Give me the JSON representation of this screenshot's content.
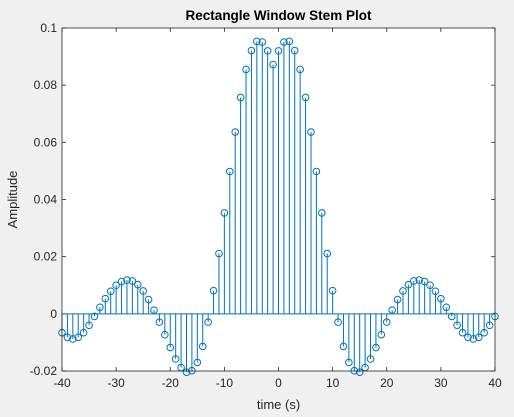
{
  "chart_data": {
    "type": "stem",
    "title": "Rectangle Window Stem Plot",
    "xlabel": "time (s)",
    "ylabel": "Amplitude",
    "xlim": [
      -40,
      40
    ],
    "ylim": [
      -0.02,
      0.1
    ],
    "xticks": [
      -40,
      -30,
      -20,
      -10,
      0,
      10,
      20,
      30,
      40
    ],
    "xtick_labels": [
      "-40",
      "-30",
      "-20",
      "-10",
      "0",
      "10",
      "20",
      "30",
      "40"
    ],
    "yticks": [
      -0.02,
      0,
      0.02,
      0.04,
      0.06,
      0.08,
      0.1
    ],
    "ytick_labels": [
      "-0.02",
      "0",
      "0.02",
      "0.04",
      "0.06",
      "0.08",
      "0.1"
    ],
    "grid": false,
    "line_color": "#0072BD",
    "series": [
      {
        "x": [
          -40,
          -39,
          -38,
          -37,
          -36,
          -35,
          -34,
          -33,
          -32,
          -31,
          -30,
          -29,
          -28,
          -27,
          -26,
          -25,
          -24,
          -23,
          -22,
          -21,
          -20,
          -19,
          -18,
          -17,
          -16,
          -15,
          -14,
          -13,
          -12,
          -11,
          -10,
          -9,
          -8,
          -7,
          -6,
          -5,
          -4,
          -3,
          -2,
          -1,
          0,
          1,
          2,
          3,
          4,
          5,
          6,
          7,
          8,
          9,
          10,
          11,
          12,
          13,
          14,
          15,
          16,
          17,
          18,
          19,
          20,
          21,
          22,
          23,
          24,
          25,
          26,
          27,
          28,
          29,
          30,
          31,
          32,
          33,
          34,
          35,
          36,
          37,
          38,
          39,
          40
        ],
        "y": [
          -0.0066,
          -0.0082,
          -0.0088,
          -0.0082,
          -0.0066,
          -0.004,
          -0.0009,
          0.0023,
          0.0053,
          0.0079,
          0.01,
          0.0113,
          0.0118,
          0.0115,
          0.0102,
          0.008,
          0.005,
          0.0013,
          -0.0029,
          -0.0073,
          -0.0118,
          -0.0158,
          -0.0188,
          -0.0204,
          -0.0199,
          -0.017,
          -0.0114,
          -0.0029,
          0.0081,
          0.0211,
          0.0353,
          0.0498,
          0.0636,
          0.0757,
          0.0855,
          0.0921,
          0.0953,
          0.0951,
          0.092,
          0.0872,
          0.092,
          0.0951,
          0.0953,
          0.0921,
          0.0855,
          0.0757,
          0.0636,
          0.0498,
          0.0353,
          0.0211,
          0.0081,
          -0.0029,
          -0.0114,
          -0.017,
          -0.0199,
          -0.0204,
          -0.0188,
          -0.0158,
          -0.0118,
          -0.0073,
          -0.0029,
          0.0013,
          0.005,
          0.008,
          0.0102,
          0.0115,
          0.0118,
          0.0113,
          0.01,
          0.0079,
          0.0053,
          0.0023,
          -0.0009,
          -0.004,
          -0.0066,
          -0.0082,
          -0.0088,
          -0.0082,
          -0.0066,
          -0.004,
          -0.0009
        ]
      }
    ]
  }
}
